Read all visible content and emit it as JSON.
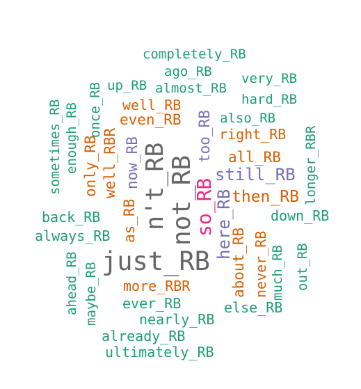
{
  "palette": {
    "teal": "#1b9e77",
    "orange": "#d95f02",
    "purple": "#7570b3",
    "magenta": "#e7298a",
    "gray": "#666666"
  },
  "words": [
    {
      "text": "completely_RB",
      "color": "teal"
    },
    {
      "text": "ago_RB",
      "color": "teal"
    },
    {
      "text": "very_RB",
      "color": "teal"
    },
    {
      "text": "up_RB",
      "color": "teal"
    },
    {
      "text": "almost_RB",
      "color": "teal"
    },
    {
      "text": "hard_RB",
      "color": "teal"
    },
    {
      "text": "well_RB",
      "color": "orange"
    },
    {
      "text": "also_RB",
      "color": "teal"
    },
    {
      "text": "even_RB",
      "color": "orange"
    },
    {
      "text": "right_RB",
      "color": "orange"
    },
    {
      "text": "all_RB",
      "color": "orange"
    },
    {
      "text": "still_RB",
      "color": "purple"
    },
    {
      "text": "then_RB",
      "color": "orange"
    },
    {
      "text": "back_RB",
      "color": "teal"
    },
    {
      "text": "down_RB",
      "color": "teal"
    },
    {
      "text": "always_RB",
      "color": "teal"
    },
    {
      "text": "just_RB",
      "color": "gray"
    },
    {
      "text": "more_RBR",
      "color": "orange"
    },
    {
      "text": "ever_RB",
      "color": "teal"
    },
    {
      "text": "else_RB",
      "color": "teal"
    },
    {
      "text": "nearly_RB",
      "color": "teal"
    },
    {
      "text": "already_RB",
      "color": "teal"
    },
    {
      "text": "ultimately_RB",
      "color": "teal"
    },
    {
      "text": "sometimes_RB",
      "color": "teal"
    },
    {
      "text": "enough_RB",
      "color": "teal"
    },
    {
      "text": "once_RB",
      "color": "teal"
    },
    {
      "text": "only_RB",
      "color": "orange"
    },
    {
      "text": "well_RBR",
      "color": "orange"
    },
    {
      "text": "now_RB",
      "color": "purple"
    },
    {
      "text": "as_RB",
      "color": "orange"
    },
    {
      "text": "n't_RB",
      "color": "gray"
    },
    {
      "text": "not_RB",
      "color": "gray"
    },
    {
      "text": "too_RB",
      "color": "purple"
    },
    {
      "text": "so_RB",
      "color": "magenta"
    },
    {
      "text": "here_RB",
      "color": "purple"
    },
    {
      "text": "longer_RBR",
      "color": "teal"
    },
    {
      "text": "about_RB",
      "color": "orange"
    },
    {
      "text": "never_RB",
      "color": "orange"
    },
    {
      "text": "much_RB",
      "color": "teal"
    },
    {
      "text": "out_RB",
      "color": "teal"
    },
    {
      "text": "ahead_RB",
      "color": "teal"
    },
    {
      "text": "maybe_RB",
      "color": "teal"
    }
  ]
}
